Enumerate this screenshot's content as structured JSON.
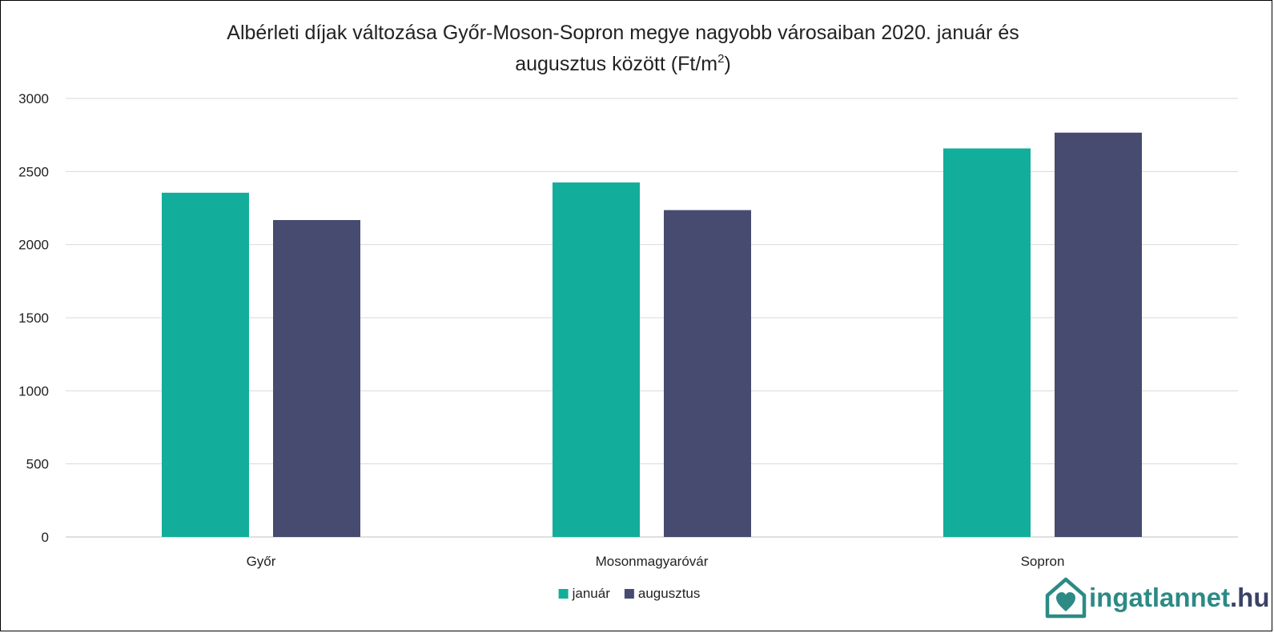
{
  "chart_data": {
    "type": "bar",
    "title_line1": "Albérleti díjak változása Győr-Moson-Sopron megye nagyobb városaiban 2020. január és",
    "title_line2_main": "augusztus között (Ft/m",
    "title_line2_sup": "2",
    "title_line2_end": ")",
    "categories": [
      "Győr",
      "Mosonmagyaróvár",
      "Sopron"
    ],
    "series": [
      {
        "name": "január",
        "color": "#12ae9b",
        "values": [
          2355,
          2425,
          2658
        ]
      },
      {
        "name": "augusztus",
        "color": "#464b6f",
        "values": [
          2168,
          2236,
          2766
        ]
      }
    ],
    "ylim": [
      0,
      3000
    ],
    "yticks": [
      0,
      500,
      1000,
      1500,
      2000,
      2500,
      3000
    ],
    "grid": true,
    "legend_position": "bottom"
  },
  "logo": {
    "text_main": "ingatlannet",
    "text_tld": ".hu",
    "color_main": "#2d8a85",
    "color_tld": "#3a4366",
    "icon": "house-heart-icon"
  }
}
